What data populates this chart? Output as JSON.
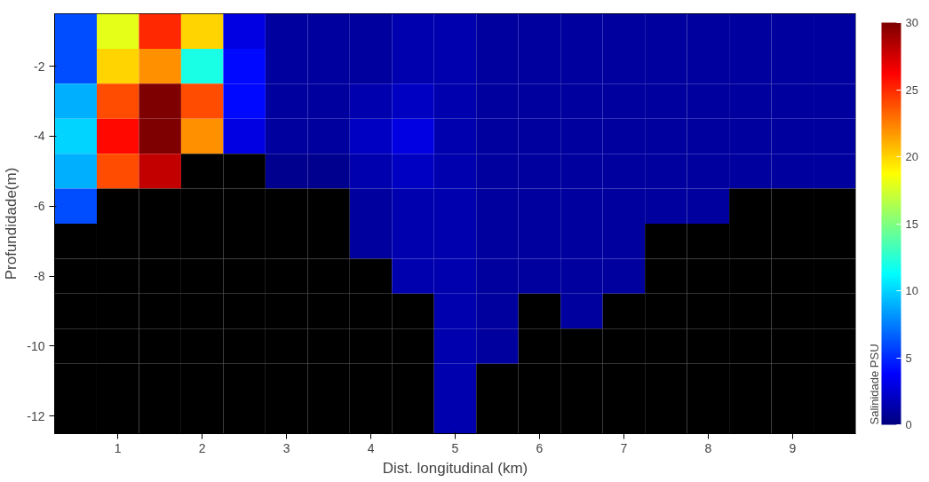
{
  "chart_data": {
    "type": "heatmap",
    "xlabel": "Dist. longitudinal (km)",
    "ylabel": "Profundidade(m)",
    "clabel": "Salinidade PSU",
    "clim": [
      0,
      30
    ],
    "cticks": [
      0,
      5,
      10,
      15,
      20,
      25,
      30
    ],
    "categories": [
      null,
      "1",
      null,
      "2",
      null,
      "3",
      null,
      "4",
      null,
      "5",
      null,
      "6",
      null,
      "7",
      null,
      "8",
      null,
      "9",
      null
    ],
    "y_categories": [
      null,
      "-2",
      null,
      "-4",
      null,
      "-6",
      null,
      "-8",
      null,
      "-10",
      null,
      "-12"
    ],
    "cells": [
      [
        6,
        18,
        25,
        20,
        3,
        1,
        1,
        1,
        1.5,
        1.5,
        1,
        1,
        1,
        1,
        1,
        1,
        1,
        1,
        1
      ],
      [
        6,
        20,
        22,
        12,
        4,
        1,
        1,
        1,
        1.5,
        1.5,
        1,
        1,
        1,
        1,
        1,
        1,
        1,
        1,
        1
      ],
      [
        9,
        24,
        30,
        24,
        4,
        1,
        1,
        1.5,
        2,
        1.5,
        1,
        1,
        1,
        1,
        1,
        1,
        1,
        1,
        1
      ],
      [
        10,
        26,
        31,
        22,
        3,
        1,
        1,
        2,
        3,
        1.5,
        1,
        1,
        1,
        1,
        1,
        1,
        1,
        1,
        1
      ],
      [
        9,
        24,
        28,
        null,
        null,
        0.5,
        0.5,
        1.5,
        2,
        1.5,
        1,
        1,
        1,
        1,
        1,
        1,
        1,
        1,
        1
      ],
      [
        6,
        null,
        null,
        null,
        null,
        null,
        null,
        1,
        1.5,
        1.5,
        1,
        1,
        1,
        1,
        1,
        1,
        null,
        null,
        null
      ],
      [
        null,
        null,
        null,
        null,
        null,
        null,
        null,
        1,
        1.5,
        1.5,
        1,
        1,
        1,
        1,
        null,
        null,
        null,
        null,
        null
      ],
      [
        null,
        null,
        null,
        null,
        null,
        null,
        null,
        null,
        1.5,
        1.5,
        1,
        1,
        1,
        1,
        null,
        null,
        null,
        null,
        null
      ],
      [
        null,
        null,
        null,
        null,
        null,
        null,
        null,
        null,
        null,
        1.5,
        1,
        null,
        1,
        null,
        null,
        null,
        null,
        null,
        null
      ],
      [
        null,
        null,
        null,
        null,
        null,
        null,
        null,
        null,
        null,
        1.5,
        1,
        null,
        null,
        null,
        null,
        null,
        null,
        null,
        null
      ],
      [
        null,
        null,
        null,
        null,
        null,
        null,
        null,
        null,
        null,
        1.5,
        null,
        null,
        null,
        null,
        null,
        null,
        null,
        null,
        null
      ],
      [
        null,
        null,
        null,
        null,
        null,
        null,
        null,
        null,
        null,
        1.5,
        null,
        null,
        null,
        null,
        null,
        null,
        null,
        null,
        null
      ]
    ]
  }
}
